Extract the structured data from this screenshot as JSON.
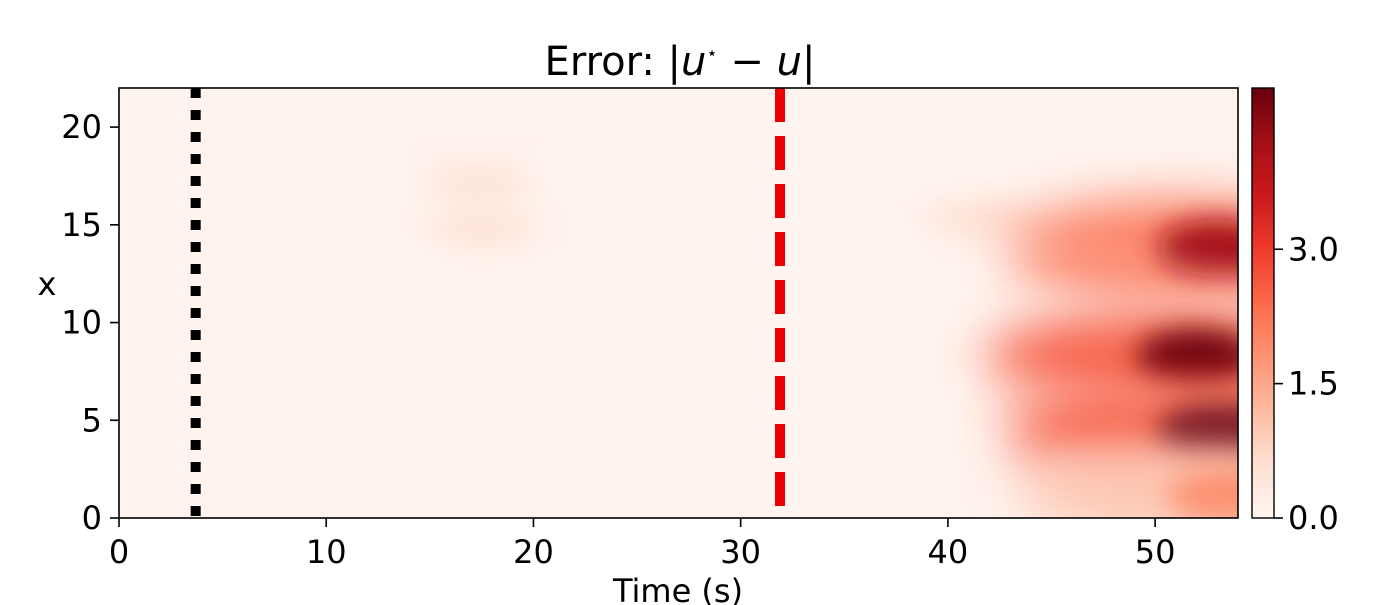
{
  "chart_data": {
    "type": "heatmap",
    "title": "Error: |u⋆ − u|",
    "title_parts": {
      "prefix": "Error: |",
      "u_star": "u",
      "star": "⋆",
      "minus": " − ",
      "u": "u",
      "suffix": "|"
    },
    "xlabel": "Time (s)",
    "ylabel": "x",
    "xlim": [
      0,
      54
    ],
    "ylim": [
      0,
      22
    ],
    "x_ticks": [
      0,
      10,
      20,
      30,
      40,
      50
    ],
    "y_ticks": [
      0,
      5,
      10,
      15,
      20
    ],
    "colormap": "Reds",
    "colorbar": {
      "vmin": 0.0,
      "vmax": 4.8,
      "ticks": [
        "0.0",
        "1.5",
        "3.0"
      ]
    },
    "vertical_lines": [
      {
        "x": 3.7,
        "style": "dotted",
        "color": "#000000"
      },
      {
        "x": 31.9,
        "style": "dashed",
        "color": "#ee0000"
      }
    ],
    "error_regions": [
      {
        "t": 17.3,
        "x": 17.2,
        "magnitude": 0.45
      },
      {
        "t": 17.5,
        "x": 14.8,
        "magnitude": 0.4
      },
      {
        "t": 41.5,
        "x": 15.2,
        "magnitude": 0.45
      },
      {
        "t": 53.0,
        "x": 13.8,
        "magnitude": 4.2
      },
      {
        "t": 52.0,
        "x": 8.2,
        "magnitude": 4.8
      },
      {
        "t": 53.0,
        "x": 4.4,
        "magnitude": 4.8
      },
      {
        "t": 53.5,
        "x": 1.2,
        "magnitude": 1.8
      }
    ],
    "grid": false,
    "legend": "none"
  }
}
